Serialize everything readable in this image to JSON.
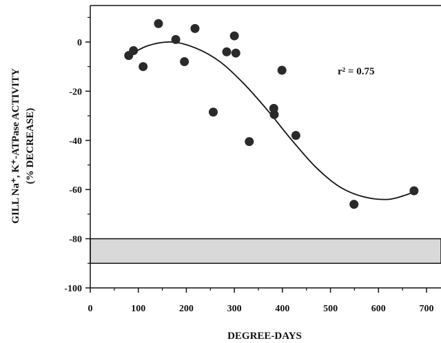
{
  "chart_data": {
    "type": "scatter",
    "xlabel": "DEGREE-DAYS",
    "ylabel_line1": "GILL Na⁺, K⁺-ATPase ACTIVITY",
    "ylabel_line2": "(% DECREASE)",
    "xlim": [
      0,
      700
    ],
    "ylim": [
      -100,
      15
    ],
    "xticks": [
      0,
      100,
      200,
      300,
      400,
      500,
      600,
      700
    ],
    "yticks": [
      0,
      -20,
      -40,
      -60,
      -80,
      -100
    ],
    "annotation": "r² = 0.75",
    "band": {
      "from": -80,
      "to": -90,
      "color": "#d9d9d9"
    },
    "points": [
      {
        "x": 80,
        "y": -5.5
      },
      {
        "x": 90,
        "y": -3.5
      },
      {
        "x": 110,
        "y": -10
      },
      {
        "x": 142,
        "y": 7.5
      },
      {
        "x": 178,
        "y": 1
      },
      {
        "x": 196,
        "y": -8
      },
      {
        "x": 218,
        "y": 5.5
      },
      {
        "x": 256,
        "y": -28.5
      },
      {
        "x": 284,
        "y": -4
      },
      {
        "x": 300,
        "y": 2.5
      },
      {
        "x": 303,
        "y": -4.5
      },
      {
        "x": 331,
        "y": -40.5
      },
      {
        "x": 382,
        "y": -27
      },
      {
        "x": 383,
        "y": -29.5
      },
      {
        "x": 399,
        "y": -11.5
      },
      {
        "x": 428,
        "y": -38
      },
      {
        "x": 549,
        "y": -66
      },
      {
        "x": 674,
        "y": -60.5
      }
    ],
    "fit_curve": {
      "x": [
        80,
        120,
        170,
        220,
        270,
        320,
        370,
        420,
        470,
        520,
        570,
        620,
        660,
        672
      ],
      "y": [
        -5.5,
        -1.5,
        0,
        -2.5,
        -8,
        -17,
        -28,
        -40,
        -51,
        -59,
        -63,
        -64,
        -62,
        -61
      ]
    }
  }
}
